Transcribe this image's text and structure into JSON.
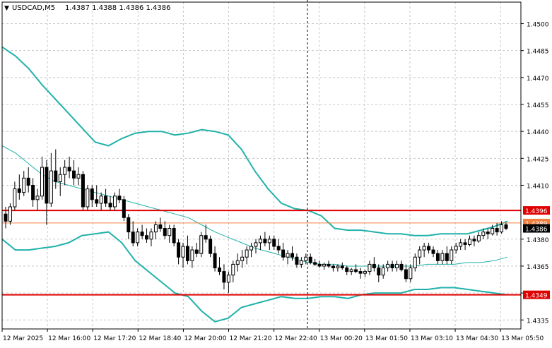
{
  "header": {
    "symbol_tf": "USDCAD,M5",
    "ohlc": "1.4387 1.4388 1.4386 1.4386"
  },
  "price_axis": {
    "ticks": [
      "1.4500",
      "1.4485",
      "1.4470",
      "1.4455",
      "1.4440",
      "1.4425",
      "1.4410",
      "1.4380",
      "1.4365",
      "1.4350",
      "1.4335"
    ]
  },
  "time_axis": {
    "labels": [
      "12 Mar 2025",
      "12 Mar 16:00",
      "12 Mar 17:20",
      "12 Mar 18:40",
      "12 Mar 20:00",
      "12 Mar 21:20",
      "12 Mar 22:40",
      "13 Mar 00:20",
      "13 Mar 01:50",
      "13 Mar 03:10",
      "13 Mar 04:30",
      "13 Mar 05:50"
    ]
  },
  "levels": [
    {
      "label": "1.4396",
      "value": 1.4396,
      "color": "#e00000"
    },
    {
      "label": "1.4389",
      "value": 1.4389,
      "color": "#f08040"
    },
    {
      "label": "1.4386",
      "value": 1.4386,
      "color": "#000000"
    },
    {
      "label": "1.4349",
      "value": 1.4349,
      "color": "#e00000"
    }
  ],
  "colors": {
    "grid": "#c8c8c8",
    "candle": "#000000",
    "band": "#20b2aa",
    "support_resistance": "#e00000",
    "bid_line": "#f08040"
  },
  "chart_data": {
    "type": "candlestick",
    "symbol": "USDCAD",
    "timeframe": "M5",
    "ylim": [
      1.433,
      1.4512
    ],
    "candles_ohlc": [
      [
        1.4394,
        1.4398,
        1.4386,
        1.439
      ],
      [
        1.439,
        1.44,
        1.4388,
        1.4398
      ],
      [
        1.4398,
        1.4412,
        1.4396,
        1.4408
      ],
      [
        1.4408,
        1.4416,
        1.4402,
        1.4406
      ],
      [
        1.4406,
        1.4418,
        1.4404,
        1.4414
      ],
      [
        1.4414,
        1.442,
        1.4406,
        1.441
      ],
      [
        1.441,
        1.4414,
        1.4398,
        1.4402
      ],
      [
        1.4402,
        1.4408,
        1.4396,
        1.4404
      ],
      [
        1.4404,
        1.4426,
        1.4402,
        1.442
      ],
      [
        1.442,
        1.4424,
        1.4388,
        1.44
      ],
      [
        1.44,
        1.4428,
        1.4398,
        1.4418
      ],
      [
        1.4418,
        1.443,
        1.4408,
        1.4412
      ],
      [
        1.4412,
        1.442,
        1.4404,
        1.4416
      ],
      [
        1.4416,
        1.4424,
        1.441,
        1.442
      ],
      [
        1.442,
        1.4426,
        1.4414,
        1.4418
      ],
      [
        1.4418,
        1.4424,
        1.441,
        1.4414
      ],
      [
        1.4414,
        1.442,
        1.441,
        1.4416
      ],
      [
        1.4416,
        1.4418,
        1.4396,
        1.4398
      ],
      [
        1.4398,
        1.441,
        1.4396,
        1.4408
      ],
      [
        1.4408,
        1.441,
        1.4398,
        1.4402
      ],
      [
        1.4402,
        1.441,
        1.4398,
        1.44
      ],
      [
        1.44,
        1.4406,
        1.4396,
        1.4404
      ],
      [
        1.4404,
        1.4408,
        1.4398,
        1.44
      ],
      [
        1.44,
        1.4404,
        1.4396,
        1.4398
      ],
      [
        1.4398,
        1.4406,
        1.4396,
        1.4404
      ],
      [
        1.4404,
        1.4408,
        1.44,
        1.4402
      ],
      [
        1.4402,
        1.4404,
        1.439,
        1.4392
      ],
      [
        1.4392,
        1.4394,
        1.438,
        1.4384
      ],
      [
        1.4384,
        1.439,
        1.4376,
        1.4378
      ],
      [
        1.4378,
        1.4386,
        1.4376,
        1.4384
      ],
      [
        1.4384,
        1.4388,
        1.438,
        1.4382
      ],
      [
        1.4382,
        1.4386,
        1.4378,
        1.438
      ],
      [
        1.438,
        1.4386,
        1.4376,
        1.4384
      ],
      [
        1.4384,
        1.439,
        1.438,
        1.4388
      ],
      [
        1.4388,
        1.4392,
        1.4384,
        1.4386
      ],
      [
        1.4386,
        1.439,
        1.438,
        1.4382
      ],
      [
        1.4382,
        1.4388,
        1.4378,
        1.4386
      ],
      [
        1.4386,
        1.4388,
        1.4376,
        1.4378
      ],
      [
        1.4378,
        1.438,
        1.4366,
        1.437
      ],
      [
        1.437,
        1.4378,
        1.4364,
        1.4376
      ],
      [
        1.4376,
        1.4382,
        1.4366,
        1.4368
      ],
      [
        1.4368,
        1.4376,
        1.4364,
        1.4374
      ],
      [
        1.4374,
        1.4378,
        1.437,
        1.4372
      ],
      [
        1.4372,
        1.4384,
        1.437,
        1.4382
      ],
      [
        1.4382,
        1.4388,
        1.4378,
        1.438
      ],
      [
        1.438,
        1.4382,
        1.437,
        1.4372
      ],
      [
        1.4372,
        1.4376,
        1.4362,
        1.4364
      ],
      [
        1.4364,
        1.437,
        1.436,
        1.4362
      ],
      [
        1.4362,
        1.4366,
        1.4352,
        1.4356
      ],
      [
        1.4356,
        1.4362,
        1.435,
        1.436
      ],
      [
        1.436,
        1.4368,
        1.4356,
        1.4366
      ],
      [
        1.4366,
        1.4372,
        1.4362,
        1.4368
      ],
      [
        1.4368,
        1.4374,
        1.4364,
        1.437
      ],
      [
        1.437,
        1.4376,
        1.4366,
        1.4374
      ],
      [
        1.4374,
        1.4378,
        1.437,
        1.4376
      ],
      [
        1.4376,
        1.438,
        1.4372,
        1.4378
      ],
      [
        1.4378,
        1.4382,
        1.4374,
        1.438
      ],
      [
        1.438,
        1.4384,
        1.4376,
        1.4378
      ],
      [
        1.4378,
        1.4382,
        1.4374,
        1.438
      ],
      [
        1.438,
        1.4382,
        1.4374,
        1.4376
      ],
      [
        1.4376,
        1.438,
        1.4372,
        1.4374
      ],
      [
        1.4374,
        1.4378,
        1.4368,
        1.437
      ],
      [
        1.437,
        1.4374,
        1.4366,
        1.4372
      ],
      [
        1.4372,
        1.4376,
        1.4368,
        1.437
      ],
      [
        1.437,
        1.4372,
        1.4364,
        1.4366
      ],
      [
        1.4366,
        1.437,
        1.4364,
        1.4368
      ],
      [
        1.4368,
        1.4372,
        1.4366,
        1.437
      ],
      [
        1.437,
        1.4372,
        1.4366,
        1.4367
      ],
      [
        1.4367,
        1.4369,
        1.4365,
        1.4366
      ],
      [
        1.4366,
        1.4368,
        1.4364,
        1.4365
      ],
      [
        1.4365,
        1.4367,
        1.4363,
        1.4366
      ],
      [
        1.4366,
        1.4368,
        1.4364,
        1.4365
      ],
      [
        1.4365,
        1.4366,
        1.4362,
        1.4364
      ],
      [
        1.4364,
        1.4366,
        1.4362,
        1.4365
      ],
      [
        1.4365,
        1.4367,
        1.4363,
        1.4364
      ],
      [
        1.4364,
        1.4365,
        1.436,
        1.4362
      ],
      [
        1.4362,
        1.4364,
        1.436,
        1.4363
      ],
      [
        1.4363,
        1.4366,
        1.4361,
        1.4362
      ],
      [
        1.4362,
        1.4364,
        1.4358,
        1.4361
      ],
      [
        1.4361,
        1.4363,
        1.4359,
        1.4362
      ],
      [
        1.4362,
        1.4368,
        1.436,
        1.4366
      ],
      [
        1.4366,
        1.437,
        1.4362,
        1.4364
      ],
      [
        1.4364,
        1.4366,
        1.4356,
        1.436
      ],
      [
        1.436,
        1.4366,
        1.4358,
        1.4364
      ],
      [
        1.4364,
        1.4368,
        1.4362,
        1.4366
      ],
      [
        1.4366,
        1.4368,
        1.4362,
        1.4364
      ],
      [
        1.4364,
        1.4368,
        1.4362,
        1.4366
      ],
      [
        1.4366,
        1.4368,
        1.4362,
        1.4363
      ],
      [
        1.4363,
        1.4366,
        1.4356,
        1.4358
      ],
      [
        1.4358,
        1.4366,
        1.4356,
        1.4364
      ],
      [
        1.4364,
        1.4372,
        1.4362,
        1.437
      ],
      [
        1.437,
        1.4376,
        1.4366,
        1.4374
      ],
      [
        1.4374,
        1.4378,
        1.437,
        1.4376
      ],
      [
        1.4376,
        1.4378,
        1.4372,
        1.4374
      ],
      [
        1.4374,
        1.4376,
        1.437,
        1.4372
      ],
      [
        1.4372,
        1.4374,
        1.4366,
        1.4368
      ],
      [
        1.4368,
        1.4374,
        1.4366,
        1.4372
      ],
      [
        1.4372,
        1.4376,
        1.4366,
        1.4368
      ],
      [
        1.4368,
        1.4376,
        1.4366,
        1.4374
      ],
      [
        1.4374,
        1.4378,
        1.4372,
        1.4376
      ],
      [
        1.4376,
        1.438,
        1.4374,
        1.4378
      ],
      [
        1.4378,
        1.438,
        1.4374,
        1.4377
      ],
      [
        1.4377,
        1.4382,
        1.4376,
        1.438
      ],
      [
        1.438,
        1.4382,
        1.4376,
        1.4379
      ],
      [
        1.4379,
        1.4384,
        1.4378,
        1.4382
      ],
      [
        1.4382,
        1.4386,
        1.438,
        1.4384
      ],
      [
        1.4384,
        1.4386,
        1.438,
        1.4383
      ],
      [
        1.4383,
        1.4388,
        1.4382,
        1.4386
      ],
      [
        1.4386,
        1.4389,
        1.4382,
        1.4384
      ],
      [
        1.4384,
        1.439,
        1.4383,
        1.4388
      ],
      [
        1.4388,
        1.4389,
        1.4385,
        1.4386
      ]
    ],
    "bollinger_upper": [
      1.4487,
      1.4482,
      1.4475,
      1.4466,
      1.4458,
      1.445,
      1.4442,
      1.4434,
      1.4432,
      1.4436,
      1.4439,
      1.444,
      1.444,
      1.4438,
      1.4439,
      1.4441,
      1.444,
      1.4438,
      1.443,
      1.4418,
      1.4408,
      1.44,
      1.4397,
      1.4396,
      1.4393,
      1.4386,
      1.4385,
      1.4385,
      1.4384,
      1.4383,
      1.4383,
      1.4382,
      1.4382,
      1.4383,
      1.4383,
      1.4383,
      1.4385,
      1.4387,
      1.439
    ],
    "bollinger_middle": [
      1.4432,
      1.4428,
      1.4422,
      1.4416,
      1.4412,
      1.441,
      1.4408,
      1.4406,
      1.4404,
      1.4402,
      1.44,
      1.4398,
      1.4396,
      1.4394,
      1.4392,
      1.4388,
      1.4384,
      1.4381,
      1.4378,
      1.4375,
      1.4373,
      1.4371,
      1.4369,
      1.4367,
      1.4366,
      1.4366,
      1.4365,
      1.4365,
      1.4365,
      1.4365,
      1.4365,
      1.4365,
      1.4366,
      1.4366,
      1.4366,
      1.4367,
      1.4367,
      1.4368,
      1.437
    ],
    "bollinger_lower": [
      1.438,
      1.4374,
      1.4374,
      1.4375,
      1.4376,
      1.4378,
      1.4382,
      1.4383,
      1.4384,
      1.4378,
      1.4368,
      1.4362,
      1.4356,
      1.435,
      1.4348,
      1.434,
      1.4334,
      1.4336,
      1.4342,
      1.4344,
      1.4346,
      1.4348,
      1.4347,
      1.4347,
      1.4348,
      1.4348,
      1.4347,
      1.4349,
      1.435,
      1.435,
      1.435,
      1.4352,
      1.4352,
      1.4353,
      1.4353,
      1.4352,
      1.4351,
      1.435,
      1.4349
    ],
    "support": 1.4349,
    "resistance": 1.4396,
    "grid": true
  }
}
